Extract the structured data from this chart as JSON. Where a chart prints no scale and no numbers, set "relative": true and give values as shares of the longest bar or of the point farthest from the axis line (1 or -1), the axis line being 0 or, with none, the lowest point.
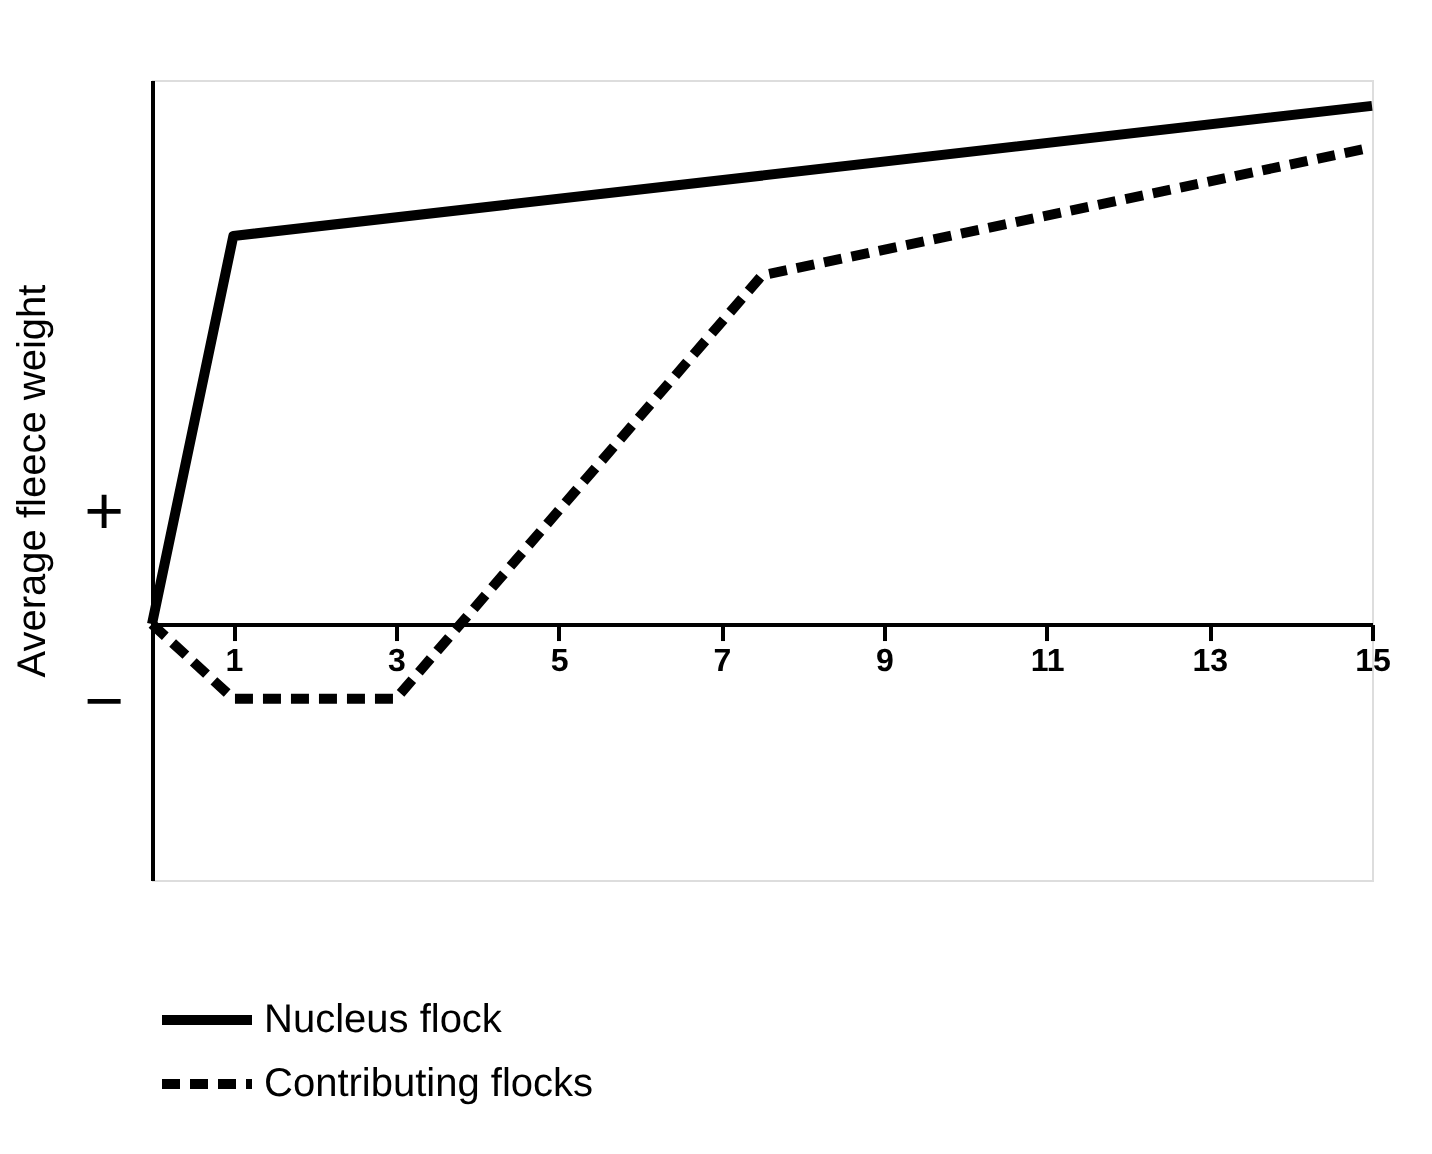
{
  "chart_data": {
    "type": "line",
    "relative": true,
    "ylabel": "Average fleece weight",
    "xlim": [
      0,
      15
    ],
    "xticks": [
      1,
      3,
      5,
      7,
      9,
      11,
      13,
      15
    ],
    "legend": "bottom",
    "grid": false,
    "tick_labels": "x",
    "annotations": [
      "+",
      "−"
    ],
    "series": [
      {
        "name": "Nucleus flock",
        "color": "#000000",
        "line_style": "solid",
        "x": [
          0,
          1,
          15
        ],
        "values": [
          0,
          0.749,
          1
        ]
      },
      {
        "name": "Contributing flocks",
        "color": "#000000",
        "line_style": "dashed",
        "x": [
          0,
          1,
          3,
          7.5,
          15
        ],
        "values": [
          0,
          -0.144,
          -0.144,
          0.673,
          0.92
        ]
      }
    ]
  }
}
